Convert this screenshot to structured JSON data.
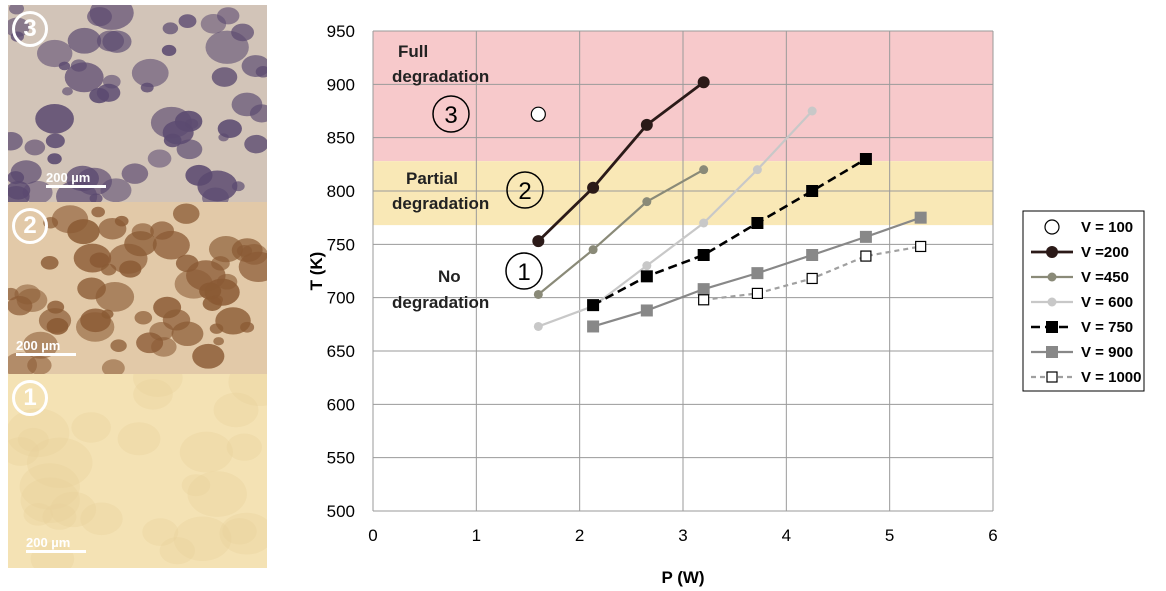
{
  "photos": [
    {
      "badge": "3",
      "scale": "200 µm",
      "colors": [
        "#5b4a70",
        "#d2c4b8"
      ]
    },
    {
      "badge": "2",
      "scale": "200 µm",
      "colors": [
        "#8a5a34",
        "#e2c9a8"
      ]
    },
    {
      "badge": "1",
      "scale": "200 µm",
      "colors": [
        "#e8d29a",
        "#f4e2b4"
      ]
    }
  ],
  "chart_data": {
    "type": "line",
    "xlabel": "P (W)",
    "ylabel": "T (K)",
    "xlim": [
      0,
      6
    ],
    "ylim": [
      500,
      950
    ],
    "xticks": [
      0,
      1,
      2,
      3,
      4,
      5,
      6
    ],
    "yticks": [
      500,
      550,
      600,
      650,
      700,
      750,
      800,
      850,
      900,
      950
    ],
    "grid": true,
    "legend_position": "right",
    "regions": [
      {
        "label": "Full degradation",
        "number": "3",
        "y_range": [
          828,
          950
        ],
        "color": "#f7c9cb"
      },
      {
        "label": "Partial degradation",
        "number": "2",
        "y_range": [
          768,
          828
        ],
        "color": "#f9e8b6"
      },
      {
        "label": "No degradation",
        "number": "1",
        "y_range": [
          500,
          768
        ],
        "color": "#ffffff"
      }
    ],
    "series": [
      {
        "name": "V = 100",
        "x": [
          1.6
        ],
        "y": [
          872
        ],
        "color": "#000000",
        "marker": "circle-open",
        "line": "none"
      },
      {
        "name": "V =200",
        "x": [
          1.6,
          2.13,
          2.65,
          3.2
        ],
        "y": [
          753,
          803,
          862,
          902
        ],
        "color": "#2b1a18",
        "marker": "circle",
        "line": "solid"
      },
      {
        "name": "V =450",
        "x": [
          1.6,
          2.13,
          2.65,
          3.2
        ],
        "y": [
          703,
          745,
          790,
          820
        ],
        "color": "#8a8a78",
        "marker": "circle-small",
        "line": "solid"
      },
      {
        "name": "V = 600",
        "x": [
          1.6,
          2.13,
          2.65,
          3.2,
          3.72,
          4.25
        ],
        "y": [
          673,
          692,
          730,
          770,
          820,
          875
        ],
        "color": "#c8c8c8",
        "marker": "circle-small",
        "line": "solid"
      },
      {
        "name": "V = 750",
        "x": [
          2.13,
          2.65,
          3.2,
          3.72,
          4.25,
          4.77
        ],
        "y": [
          693,
          720,
          740,
          770,
          800,
          830
        ],
        "color": "#000000",
        "marker": "square",
        "line": "dashed"
      },
      {
        "name": "V = 900",
        "x": [
          2.13,
          2.65,
          3.2,
          3.72,
          4.25,
          4.77,
          5.3
        ],
        "y": [
          673,
          688,
          708,
          723,
          740,
          757,
          775
        ],
        "color": "#888888",
        "marker": "square",
        "line": "solid"
      },
      {
        "name": "V = 1000",
        "x": [
          3.2,
          3.72,
          4.25,
          4.77,
          5.3
        ],
        "y": [
          698,
          704,
          718,
          739,
          748
        ],
        "color": "#a0a0a0",
        "marker": "square-open",
        "line": "dashed"
      }
    ]
  }
}
